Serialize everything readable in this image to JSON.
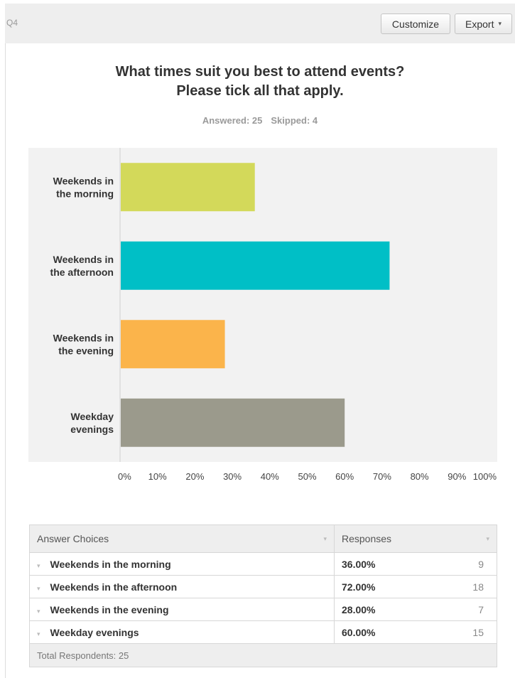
{
  "header": {
    "question_number": "Q4",
    "customize_label": "Customize",
    "export_label": "Export",
    "export_caret": "▾"
  },
  "question": {
    "line1": "What times suit you best to attend events?",
    "line2": "Please tick all that apply.",
    "answered": "Answered: 25",
    "skipped": "Skipped: 4"
  },
  "chart_data": {
    "type": "bar",
    "orientation": "horizontal",
    "categories": [
      [
        "Weekends in",
        "the morning"
      ],
      [
        "Weekends in",
        "the afternoon"
      ],
      [
        "Weekends in",
        "the evening"
      ],
      [
        "Weekday",
        "evenings"
      ]
    ],
    "values": [
      36,
      72,
      28,
      60
    ],
    "colors": [
      "#d3d95a",
      "#00bfc6",
      "#fbb44b",
      "#9b9a8c"
    ],
    "xlim": [
      0,
      100
    ],
    "xticks": [
      "0%",
      "10%",
      "20%",
      "30%",
      "40%",
      "50%",
      "60%",
      "70%",
      "80%",
      "90%",
      "100%"
    ],
    "grid": false,
    "plot_background": "#f2f2f2"
  },
  "table": {
    "headers": {
      "choices": "Answer Choices",
      "responses": "Responses",
      "sort_caret": "▾"
    },
    "row_caret": "▾",
    "rows": [
      {
        "choice": "Weekends in the morning",
        "percent": "36.00%",
        "count": "9"
      },
      {
        "choice": "Weekends in the afternoon",
        "percent": "72.00%",
        "count": "18"
      },
      {
        "choice": "Weekends in the evening",
        "percent": "28.00%",
        "count": "7"
      },
      {
        "choice": "Weekday evenings",
        "percent": "60.00%",
        "count": "15"
      }
    ],
    "total": "Total Respondents: 25"
  }
}
